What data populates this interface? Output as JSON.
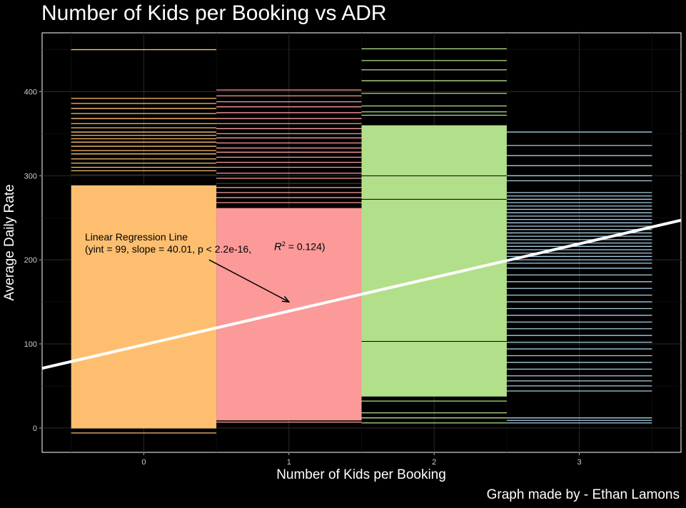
{
  "chart_data": {
    "type": "bar",
    "title": "Number of Kids per Booking vs ADR",
    "xlabel": "Number of Kids per Booking",
    "ylabel": "Average Daily Rate",
    "caption": "Graph made by - Ethan Lamons",
    "x_ticks": [
      "0",
      "1",
      "2",
      "3"
    ],
    "y_ticks": [
      "0",
      "100",
      "200",
      "300",
      "400"
    ],
    "xlim": [
      -0.7,
      3.7
    ],
    "ylim": [
      -29,
      470
    ],
    "grid": true,
    "legend": "none",
    "categories": [
      0,
      1,
      2,
      3
    ],
    "colors": [
      "#FDBF6F",
      "#FB9A99",
      "#B2DF8A",
      "#A6CEE3"
    ],
    "bar_width": 1,
    "bars": [
      {
        "x": 0,
        "solid_range": [
          0,
          289
        ],
        "lines": [
          -6,
          0,
          13,
          16,
          301,
          306,
          310,
          315,
          320,
          326,
          330,
          335,
          340,
          344,
          348,
          352,
          357,
          362,
          368,
          374,
          380,
          386,
          392,
          450
        ]
      },
      {
        "x": 1,
        "solid_range": [
          9,
          262
        ],
        "lines": [
          7,
          12,
          20,
          24,
          27,
          268,
          274,
          280,
          286,
          291,
          297,
          303,
          310,
          316,
          322,
          328,
          333,
          339,
          345,
          350,
          356,
          362,
          368,
          375,
          382,
          388,
          395,
          402
        ]
      },
      {
        "x": 2,
        "solid_range": [
          38,
          360
        ],
        "lines": [
          6,
          12,
          18,
          32,
          38,
          43,
          49,
          55,
          61,
          103,
          272,
          300,
          372,
          376,
          383,
          398,
          413,
          426,
          437,
          451
        ]
      },
      {
        "x": 3,
        "solid_range": null,
        "lines": [
          6,
          9,
          12,
          44,
          50,
          56,
          62,
          70,
          78,
          86,
          94,
          102,
          110,
          118,
          126,
          134,
          142,
          150,
          158,
          166,
          174,
          182,
          190,
          196,
          200,
          204,
          208,
          212,
          216,
          220,
          224,
          228,
          232,
          236,
          240,
          244,
          248,
          252,
          256,
          260,
          264,
          268,
          272,
          276,
          280,
          294,
          300,
          312,
          324,
          336,
          352
        ]
      }
    ],
    "regression": {
      "intercept": 99,
      "slope": 40.01,
      "color": "#ffffff"
    },
    "annotation": {
      "line1": "Linear Regression Line",
      "line2": "(yint = 99, slope = 40.01, p < 2.2e-16,",
      "r2_prefix": "R",
      "r2_exp": "2",
      "r2_value": " = 0.124)",
      "arrow_from": [
        0.45,
        200
      ],
      "arrow_to": [
        1.0,
        150
      ]
    }
  }
}
